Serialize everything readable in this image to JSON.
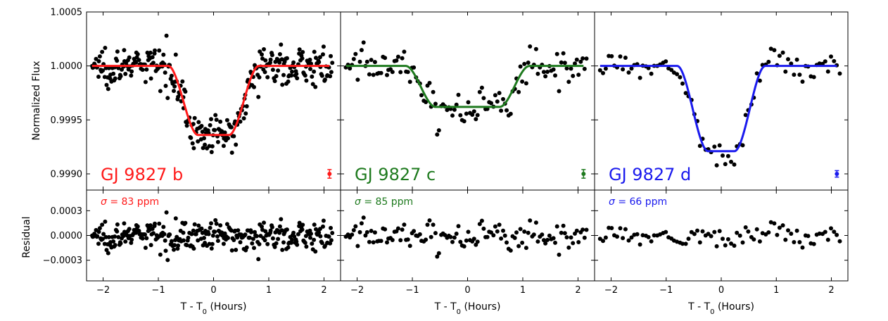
{
  "chart_data": {
    "type": "scatter",
    "shared": {
      "ylabel_top": "Normalized Flux",
      "ylabel_bottom": "Residual",
      "xlabel": "T - T",
      "xlabel_sub": "0",
      "xlabel_suffix": " (Hours)",
      "xlim": [
        -2.3,
        2.3
      ],
      "ylim_top": [
        0.99885,
        1.0005
      ],
      "ylim_bottom": [
        -0.00055,
        0.00055
      ],
      "xticks": [
        -2,
        -1,
        0,
        1,
        2
      ],
      "xtick_labels": [
        "−2",
        "−1",
        "0",
        "1",
        "2"
      ],
      "yticks_top": [
        0.999,
        0.9995,
        1.0,
        1.0005
      ],
      "ytick_labels_top": [
        "0.9990",
        "0.9995",
        "1.0000",
        "1.0005"
      ],
      "yticks_bottom": [
        -0.0003,
        0.0,
        0.0003
      ],
      "ytick_labels_bottom": [
        "−0.0003",
        "0.0000",
        "0.0003"
      ]
    },
    "panels": [
      {
        "label": "GJ 9827 b",
        "color": "#ff1a1a",
        "sigma_symbol": "σ",
        "sigma_text": " = 83 ppm",
        "model": {
          "depth": 0.00064,
          "t_full": 0.28,
          "t_total": 0.82
        },
        "n_points": 310,
        "noise": 8.5e-05,
        "errorbar": {
          "x": 2.1,
          "y": 0.999,
          "err": 4e-05
        }
      },
      {
        "label": "GJ 9827 c",
        "color": "#1e7a1e",
        "sigma_symbol": "σ",
        "sigma_text": " = 85 ppm",
        "model": {
          "depth": 0.00038,
          "t_full": 0.58,
          "t_total": 1.12
        },
        "n_points": 125,
        "noise": 8.5e-05,
        "errorbar": {
          "x": 2.1,
          "y": 0.999,
          "err": 4e-05
        }
      },
      {
        "label": "GJ 9827 d",
        "color": "#1a1aee",
        "sigma_symbol": "σ",
        "sigma_text": " = 66 ppm",
        "model": {
          "depth": 0.00079,
          "t_full": 0.24,
          "t_total": 0.8
        },
        "n_points": 85,
        "noise": 6.6e-05,
        "errorbar": {
          "x": 2.1,
          "y": 0.999,
          "err": 3e-05
        }
      }
    ]
  }
}
